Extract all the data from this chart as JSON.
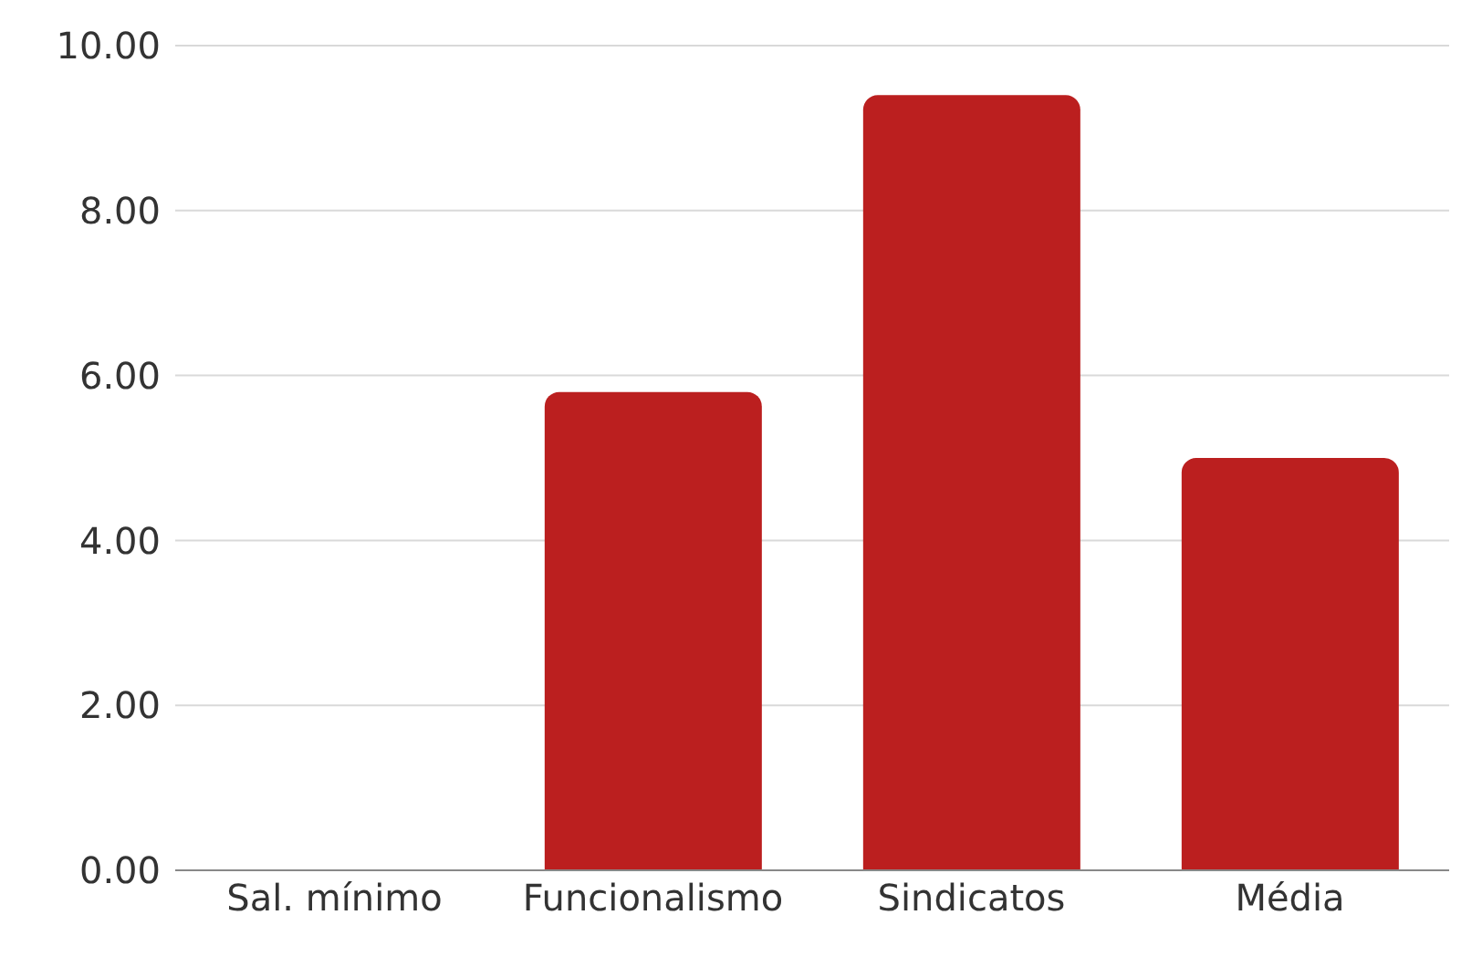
{
  "chart_data": {
    "type": "bar",
    "categories": [
      "Sal. mínimo",
      "Funcionalismo",
      "Sindicatos",
      "Média"
    ],
    "values": [
      0,
      5.8,
      9.4,
      5.0
    ],
    "color": "#bb1f1f",
    "ylim": [
      0,
      10
    ],
    "yticks": [
      {
        "value": 0,
        "label": "0.00"
      },
      {
        "value": 2,
        "label": "2.00"
      },
      {
        "value": 4,
        "label": "4.00"
      },
      {
        "value": 6,
        "label": "6.00"
      },
      {
        "value": 8,
        "label": "8.00"
      },
      {
        "value": 10,
        "label": "10.00"
      }
    ],
    "grid": "y"
  }
}
